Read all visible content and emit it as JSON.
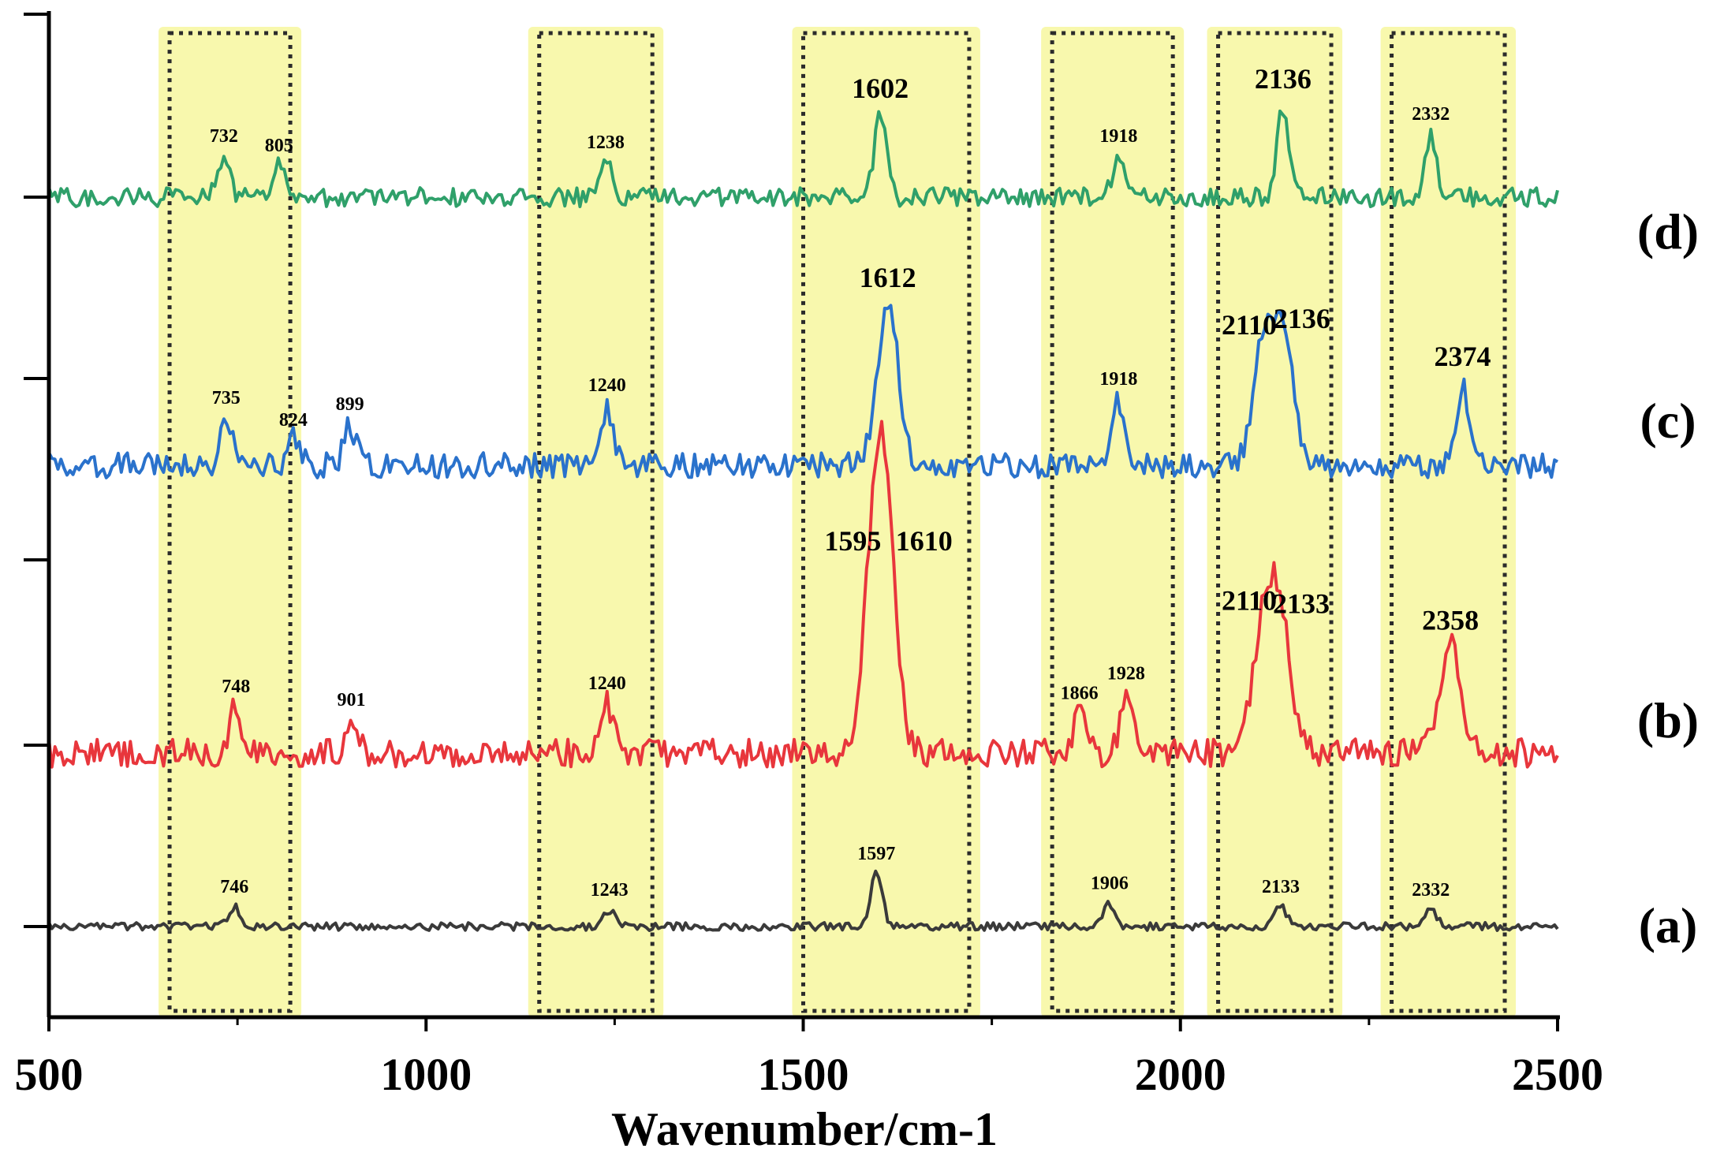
{
  "chart_data": {
    "type": "line",
    "title": "",
    "xlabel": "Wavenumber/cm-1",
    "ylabel": "",
    "xlim": [
      500,
      2500
    ],
    "x_ticks": [
      "500",
      "1000",
      "1500",
      "2000",
      "2500"
    ],
    "grid": false,
    "legend": "none",
    "highlight_bands": [
      [
        660,
        820
      ],
      [
        1150,
        1300
      ],
      [
        1500,
        1720
      ],
      [
        1830,
        1990
      ],
      [
        2050,
        2200
      ],
      [
        2280,
        2430
      ]
    ],
    "band_fill_color": "#f5f58a",
    "band_border_color": "#2b2b2b",
    "series": [
      {
        "label": "(a)",
        "color": "#3a3a3a",
        "peaks": [
          {
            "x": 746,
            "height": 0.6,
            "label": "746"
          },
          {
            "x": 1243,
            "height": 0.5,
            "label": "1243"
          },
          {
            "x": 1597,
            "height": 1.6,
            "label": "1597"
          },
          {
            "x": 1906,
            "height": 0.7,
            "label": "1906"
          },
          {
            "x": 2133,
            "height": 0.6,
            "label": "2133"
          },
          {
            "x": 2332,
            "height": 0.5,
            "label": "2332"
          }
        ]
      },
      {
        "label": "(b)",
        "color": "#e8363c",
        "peaks": [
          {
            "x": 748,
            "height": 1.4,
            "label": "748"
          },
          {
            "x": 901,
            "height": 1.0,
            "label": "901"
          },
          {
            "x": 1240,
            "height": 1.5,
            "label": "1240"
          },
          {
            "x": 1595,
            "height": 5.6,
            "label": "1595"
          },
          {
            "x": 1610,
            "height": 5.6,
            "label": "1610"
          },
          {
            "x": 1866,
            "height": 1.2,
            "label": "1866"
          },
          {
            "x": 1928,
            "height": 1.8,
            "label": "1928"
          },
          {
            "x": 2110,
            "height": 3.8,
            "label": "2110"
          },
          {
            "x": 2133,
            "height": 3.7,
            "label": "2133"
          },
          {
            "x": 2358,
            "height": 3.2,
            "label": "2358"
          }
        ]
      },
      {
        "label": "(c)",
        "color": "#2a72cc",
        "peaks": [
          {
            "x": 735,
            "height": 1.5,
            "label": "735"
          },
          {
            "x": 824,
            "height": 0.8,
            "label": "824"
          },
          {
            "x": 899,
            "height": 1.3,
            "label": "899"
          },
          {
            "x": 1240,
            "height": 1.9,
            "label": "1240"
          },
          {
            "x": 1612,
            "height": 5.1,
            "label": "1612"
          },
          {
            "x": 1918,
            "height": 2.1,
            "label": "1918"
          },
          {
            "x": 2110,
            "height": 3.6,
            "label": "2110"
          },
          {
            "x": 2136,
            "height": 3.8,
            "label": "2136"
          },
          {
            "x": 2374,
            "height": 2.6,
            "label": "2374"
          }
        ]
      },
      {
        "label": "(d)",
        "color": "#2fa06a",
        "peaks": [
          {
            "x": 732,
            "height": 1.3,
            "label": "732"
          },
          {
            "x": 805,
            "height": 1.0,
            "label": "805"
          },
          {
            "x": 1238,
            "height": 1.1,
            "label": "1238"
          },
          {
            "x": 1602,
            "height": 2.6,
            "label": "1602"
          },
          {
            "x": 1918,
            "height": 1.3,
            "label": "1918"
          },
          {
            "x": 2136,
            "height": 2.9,
            "label": "2136"
          },
          {
            "x": 2332,
            "height": 2.0,
            "label": "2332"
          }
        ]
      }
    ]
  }
}
